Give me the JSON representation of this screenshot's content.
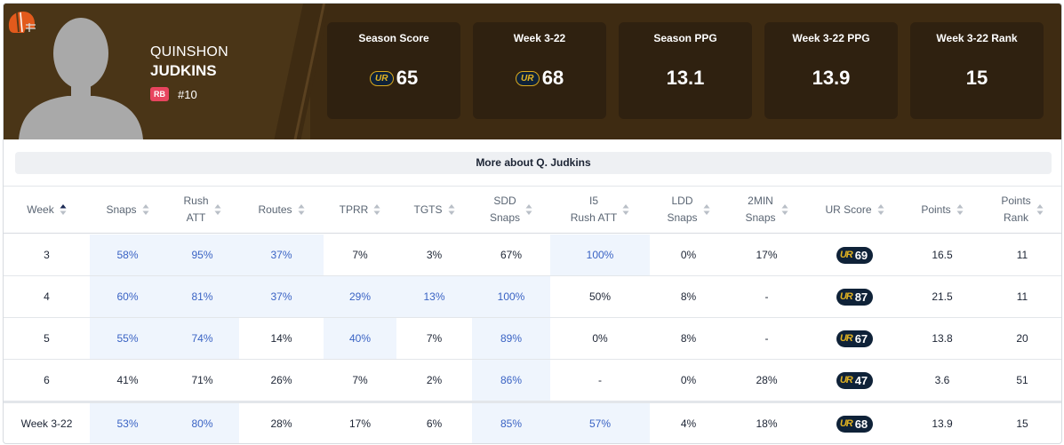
{
  "player": {
    "first_name": "QUINSHON",
    "last_name": "JUDKINS",
    "position": "RB",
    "jersey": "#10"
  },
  "stats": [
    {
      "label": "Season Score",
      "value": "65",
      "ur_badge": true
    },
    {
      "label": "Week 3-22",
      "value": "68",
      "ur_badge": true
    },
    {
      "label": "Season PPG",
      "value": "13.1",
      "ur_badge": false
    },
    {
      "label": "Week 3-22 PPG",
      "value": "13.9",
      "ur_badge": false
    },
    {
      "label": "Week 3-22 Rank",
      "value": "15",
      "ur_badge": false
    }
  ],
  "ur_mark": "UR",
  "more_label": "More about Q. Judkins",
  "columns": [
    {
      "line1": "Week",
      "line2": "",
      "sort": "asc"
    },
    {
      "line1": "Snaps",
      "line2": "",
      "sort": "none"
    },
    {
      "line1": "Rush",
      "line2": "ATT",
      "sort": "none"
    },
    {
      "line1": "Routes",
      "line2": "",
      "sort": "none"
    },
    {
      "line1": "TPRR",
      "line2": "",
      "sort": "none"
    },
    {
      "line1": "TGTS",
      "line2": "",
      "sort": "none"
    },
    {
      "line1": "SDD",
      "line2": "Snaps",
      "sort": "none"
    },
    {
      "line1": "I5",
      "line2": "Rush ATT",
      "sort": "none"
    },
    {
      "line1": "LDD",
      "line2": "Snaps",
      "sort": "none"
    },
    {
      "line1": "2MIN",
      "line2": "Snaps",
      "sort": "none"
    },
    {
      "line1": "UR Score",
      "line2": "",
      "sort": "none"
    },
    {
      "line1": "Points",
      "line2": "",
      "sort": "none"
    },
    {
      "line1": "Points",
      "line2": "Rank",
      "sort": "none"
    }
  ],
  "rows": [
    {
      "cells": [
        "3",
        "58%",
        "95%",
        "37%",
        "7%",
        "3%",
        "67%",
        "100%",
        "0%",
        "17%",
        "69",
        "16.5",
        "11"
      ],
      "highlight": [
        false,
        true,
        true,
        true,
        false,
        false,
        false,
        true,
        false,
        false,
        false,
        false,
        false
      ]
    },
    {
      "cells": [
        "4",
        "60%",
        "81%",
        "37%",
        "29%",
        "13%",
        "100%",
        "50%",
        "8%",
        "-",
        "87",
        "21.5",
        "11"
      ],
      "highlight": [
        false,
        true,
        true,
        true,
        true,
        true,
        true,
        false,
        false,
        false,
        false,
        false,
        false
      ]
    },
    {
      "cells": [
        "5",
        "55%",
        "74%",
        "14%",
        "40%",
        "7%",
        "89%",
        "0%",
        "8%",
        "-",
        "67",
        "13.8",
        "20"
      ],
      "highlight": [
        false,
        true,
        true,
        false,
        true,
        false,
        true,
        false,
        false,
        false,
        false,
        false,
        false
      ]
    },
    {
      "cells": [
        "6",
        "41%",
        "71%",
        "26%",
        "7%",
        "2%",
        "86%",
        "-",
        "0%",
        "28%",
        "47",
        "3.6",
        "51"
      ],
      "highlight": [
        false,
        false,
        false,
        false,
        false,
        false,
        true,
        false,
        false,
        false,
        false,
        false,
        false
      ]
    }
  ],
  "summary_row": {
    "cells": [
      "Week 3-22",
      "53%",
      "80%",
      "28%",
      "17%",
      "6%",
      "85%",
      "57%",
      "4%",
      "18%",
      "68",
      "13.9",
      "15"
    ],
    "highlight": [
      false,
      true,
      true,
      false,
      false,
      false,
      true,
      true,
      false,
      false,
      false,
      false,
      false
    ]
  },
  "colors": {
    "header_bg": "#3e2b12",
    "stat_box_bg": "#2f2110",
    "highlight_bg": "#eff5fd",
    "highlight_text": "#3a63c4",
    "position_badge": "#e8455f",
    "ur_gold": "#e2b321",
    "ur_navy": "#0f2238"
  }
}
